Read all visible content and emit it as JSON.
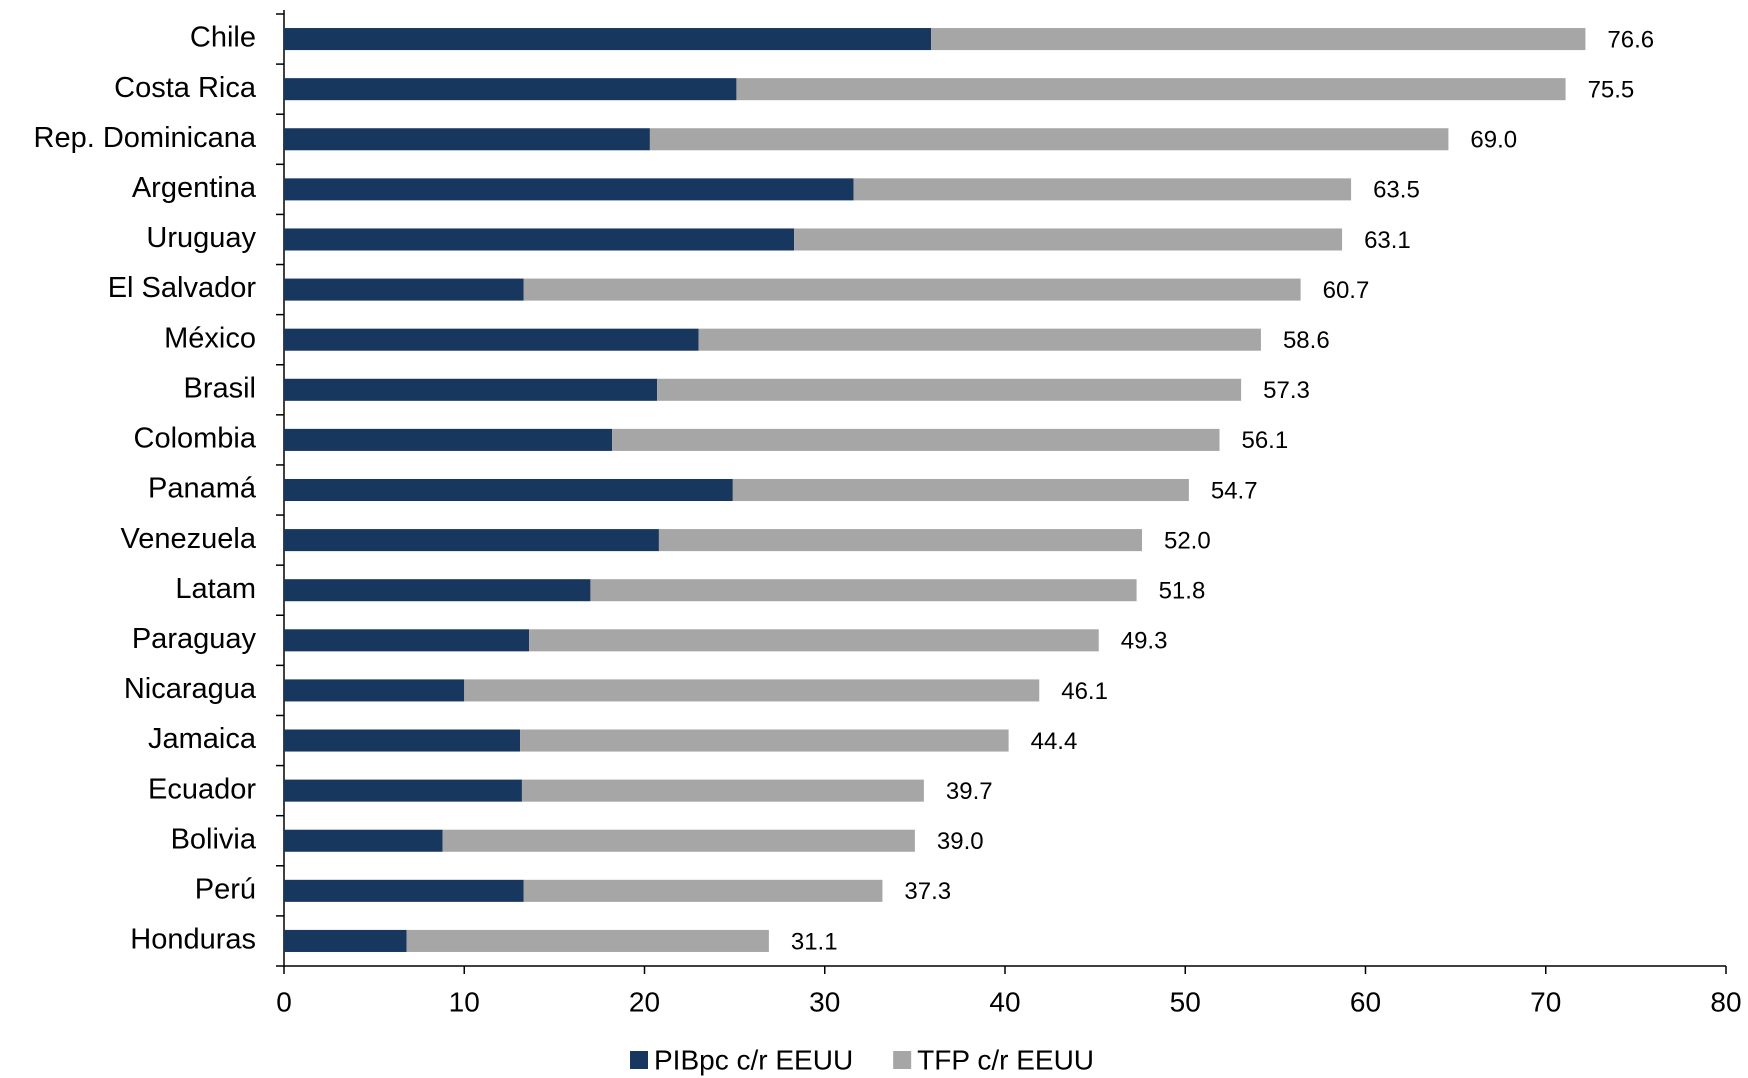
{
  "chart_data": {
    "type": "stacked_bar_horizontal",
    "categories": [
      "Chile",
      "Costa Rica",
      "Rep. Dominicana",
      "Argentina",
      "Uruguay",
      "El Salvador",
      "México",
      "Brasil",
      "Colombia",
      "Panamá",
      "Venezuela",
      "Latam",
      "Paraguay",
      "Nicaragua",
      "Jamaica",
      "Ecuador",
      "Bolivia",
      "Perú",
      "Honduras"
    ],
    "series": [
      {
        "name": "PIBpc c/r EEUU",
        "color": "#17375e",
        "values": [
          35.9,
          25.1,
          20.3,
          31.6,
          28.3,
          13.3,
          23.0,
          20.7,
          18.2,
          24.9,
          20.8,
          17.0,
          13.6,
          10.0,
          13.1,
          13.2,
          8.8,
          13.3,
          6.8
        ]
      },
      {
        "name": "TFP c/r EEUU",
        "color": "#a6a6a6",
        "values": [
          36.3,
          46.0,
          44.3,
          27.6,
          30.4,
          43.1,
          31.2,
          32.4,
          33.7,
          25.3,
          26.8,
          30.3,
          31.6,
          31.9,
          27.1,
          22.3,
          26.2,
          19.9,
          20.1
        ]
      }
    ],
    "end_labels": [
      "76.6",
      "75.5",
      "69.0",
      "63.5",
      "63.1",
      "60.7",
      "58.6",
      "57.3",
      "56.1",
      "54.7",
      "52.0",
      "51.8",
      "49.3",
      "46.1",
      "44.4",
      "39.7",
      "39.0",
      "37.3",
      "31.1"
    ],
    "xlim": [
      0,
      80
    ],
    "xticks": [
      0,
      10,
      20,
      30,
      40,
      50,
      60,
      70,
      80
    ],
    "legend": "bottom"
  }
}
